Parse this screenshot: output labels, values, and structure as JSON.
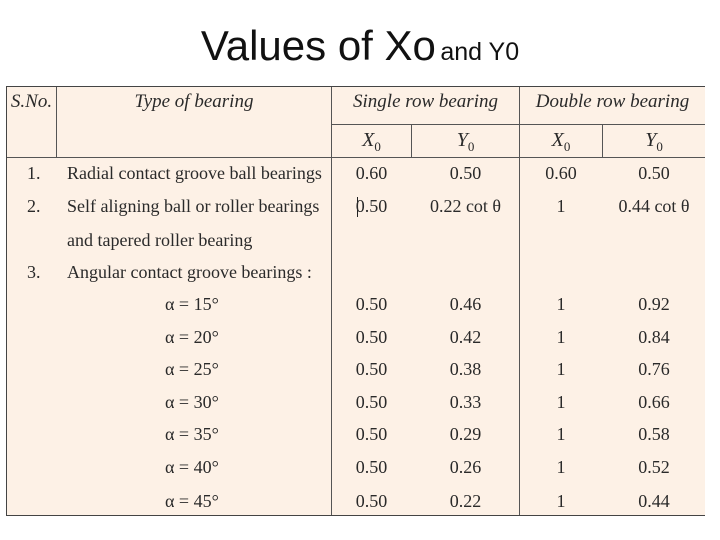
{
  "title": {
    "main": "Values of Xo",
    "suffix": "and Y0"
  },
  "table": {
    "headers": {
      "sno": "S.No.",
      "type": "Type of bearing",
      "single": "Single row bearing",
      "double": "Double row bearing",
      "x_letter": "X",
      "y_letter": "Y",
      "subscript": "0"
    },
    "rows": [
      {
        "sno": "1.",
        "type": "Radial contact groove ball bearings",
        "x_single": "0.60",
        "y_single": "0.50",
        "x_double": "0.60",
        "y_double": "0.50"
      },
      {
        "sno": "2.",
        "type": "Self aligning ball or roller bearings",
        "type_cont": "and tapered roller bearing",
        "x_single": "0.50",
        "y_single": "0.22 cot θ",
        "x_double": "1",
        "y_double": "0.44 cot θ"
      },
      {
        "sno": "3.",
        "type": "Angular contact groove bearings :"
      },
      {
        "type": "α = 15°",
        "x_single": "0.50",
        "y_single": "0.46",
        "x_double": "1",
        "y_double": "0.92"
      },
      {
        "type": "α = 20°",
        "x_single": "0.50",
        "y_single": "0.42",
        "x_double": "1",
        "y_double": "0.84"
      },
      {
        "type": "α = 25°",
        "x_single": "0.50",
        "y_single": "0.38",
        "x_double": "1",
        "y_double": "0.76"
      },
      {
        "type": "α = 30°",
        "x_single": "0.50",
        "y_single": "0.33",
        "x_double": "1",
        "y_double": "0.66"
      },
      {
        "type": "α = 35°",
        "x_single": "0.50",
        "y_single": "0.29",
        "x_double": "1",
        "y_double": "0.58"
      },
      {
        "type": "α = 40°",
        "x_single": "0.50",
        "y_single": "0.26",
        "x_double": "1",
        "y_double": "0.52"
      },
      {
        "type": "α = 45°",
        "x_single": "0.50",
        "y_single": "0.22",
        "x_double": "1",
        "y_double": "0.44"
      }
    ]
  }
}
